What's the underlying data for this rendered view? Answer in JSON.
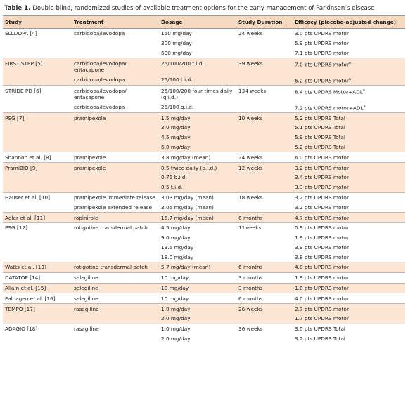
{
  "table_label": "Table 1.",
  "title": "Double-blind, randomized studies of available treatment options for the early management of Parkinson’s disease",
  "header": [
    "Study",
    "Treatment",
    "Dosage",
    "Study Duration",
    "Efficacy (placebo-adjusted change)"
  ],
  "studies": [
    {
      "study": "ELLDOPA [4]",
      "rows": [
        {
          "treatment": "carbidopa/levodopa",
          "dosage": "150 mg/day",
          "duration": "24 weeks",
          "efficacy": "3.0 pts UPDRS motor"
        },
        {
          "dosage": "300 mg/day",
          "efficacy": "5.9 pts UPDRS motor"
        },
        {
          "dosage": "600 mg/day",
          "efficacy": "7.1 pts UPDRS motor"
        }
      ]
    },
    {
      "study": "FIRST STEP [5]",
      "rows": [
        {
          "treatment": "carbidopa/levodopa/ entacapone",
          "dosage": "25/100/200 t.i.d.",
          "duration": "39 weeks",
          "efficacy": "7.0 pts UPDRS motor",
          "note": "a"
        },
        {
          "treatment": "carbidopa/levodopa",
          "dosage": "25/100 t.i.d.",
          "efficacy": "6.2 pts UPDRS motor",
          "note": "a"
        }
      ]
    },
    {
      "study": "STRIDE PD [6]",
      "rows": [
        {
          "treatment": "carbidopa/levodopa/ entacapone",
          "dosage": "25/100/200 four times daily (q.i.d.)",
          "duration": "134 weeks",
          "efficacy": "8.4 pts UPDRS Motor+ADL",
          "note": "a"
        },
        {
          "treatment": "carbidopa/levodopa",
          "dosage": "25/100 q.i.d.",
          "efficacy": "7.2 pts UPDRS motor+ADL",
          "note": "a"
        }
      ]
    },
    {
      "study": "PSG [7]",
      "rows": [
        {
          "treatment": "pramipexole",
          "dosage": "1.5 mg/day",
          "duration": "10 weeks",
          "efficacy": "5.2 pts UPDRS Total"
        },
        {
          "dosage": "3.0 mg/day",
          "efficacy": "5.1 pts UPDRS Total"
        },
        {
          "dosage": "4.5 mg/day",
          "efficacy": "5.9 pts UPDRS Total"
        },
        {
          "dosage": "6.0 mg/day",
          "efficacy": "5.2 pts UPDRS Total"
        }
      ]
    },
    {
      "study": "Shannon et al. [8]",
      "rows": [
        {
          "treatment": "pramipexole",
          "dosage": "3.8 mg/day (mean)",
          "duration": "24 weeks",
          "efficacy": "6.0 pts UPDRS motor"
        }
      ]
    },
    {
      "study": "PramiBID [9]",
      "rows": [
        {
          "treatment": "pramipexole",
          "dosage": "0.5 twice daily (b.i.d.)",
          "duration": "12 weeks",
          "efficacy": "3.2 pts UPDRS motor"
        },
        {
          "dosage": "0.75 b.i.d.",
          "efficacy": "3.4 pts UPDRS motor"
        },
        {
          "dosage": "0.5 t.i.d.",
          "efficacy": "3.3 pts UPDRS motor"
        }
      ]
    },
    {
      "study": "Hauser et al. [10]",
      "rows": [
        {
          "treatment": "pramipexole immediate release",
          "dosage": "3.03 mg/day (mean)",
          "duration": "18 weeks",
          "efficacy": "3.2 pts UPDRS motor"
        },
        {
          "treatment": "pramipexole extended release",
          "dosage": "3.05 mg/day (mean)",
          "efficacy": "3.2 pts UPDRS motor"
        }
      ]
    },
    {
      "study": "Adler et al. [11]",
      "rows": [
        {
          "treatment": "ropinirole",
          "dosage": "15.7 mg/day (mean)",
          "duration": "6 months",
          "efficacy": "4.7 pts UPDRS motor"
        }
      ]
    },
    {
      "study": "PSG [12]",
      "rows": [
        {
          "treatment": "rotigotine transdermal patch",
          "dosage": "4.5 mg/day",
          "duration": "11weeks",
          "efficacy": "0.9 pts UPDRS motor"
        },
        {
          "dosage": "9.0 mg/day",
          "efficacy": "1.9 pts UPDRS motor"
        },
        {
          "dosage": "13.5 mg/day",
          "efficacy": "3.9 pts UPDRS motor"
        },
        {
          "dosage": "18.0 mg/day",
          "efficacy": "3.8 pts UPDRS motor"
        }
      ]
    },
    {
      "study": "Watts et al. [13]",
      "rows": [
        {
          "treatment": "rotigotine transdermal patch",
          "dosage": "5.7 mg/day (mean)",
          "duration": "6 months",
          "efficacy": "4.8 pts UPDRS motor"
        }
      ]
    },
    {
      "study": "DATATOP [14]",
      "rows": [
        {
          "treatment": "selegiline",
          "dosage": "10 mg/day",
          "duration": "3 months",
          "efficacy": "1.9 pts UPDRS motor"
        }
      ]
    },
    {
      "study": "Allain et al. [15]",
      "rows": [
        {
          "treatment": "selegiline",
          "dosage": "10 mg/day",
          "duration": "3 months",
          "efficacy": "1.0 pts UPDRS motor"
        }
      ]
    },
    {
      "study": "Palhagen et al. [16]",
      "rows": [
        {
          "treatment": "selegiline",
          "dosage": "10 mg/day",
          "duration": "6 months",
          "efficacy": "4.0 pts UPDRS motor"
        }
      ]
    },
    {
      "study": "TEMPO [17]",
      "rows": [
        {
          "treatment": "rasagiline",
          "dosage": "1.0 mg/day",
          "duration": "26 weeks",
          "efficacy": "2.7 pts UPDRS motor"
        },
        {
          "dosage": "2.0 mg/day",
          "efficacy": "1.7 pts UPDRS motor"
        }
      ]
    },
    {
      "study": "ADAGIO [18]",
      "rows": [
        {
          "treatment": "rasagiline",
          "dosage": "1.0 mg/day",
          "duration": "36 weeks",
          "efficacy": "3.0 pts UPDRS Total"
        },
        {
          "dosage": "2.0 mg/day",
          "efficacy": "3.2 pts UPDRS Total"
        }
      ]
    }
  ]
}
